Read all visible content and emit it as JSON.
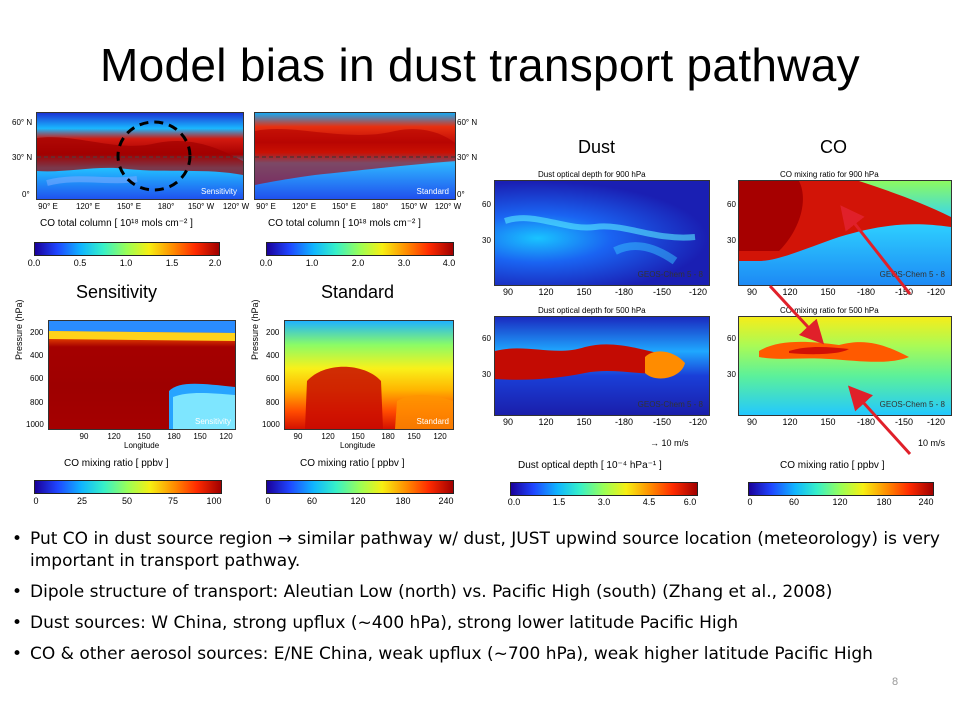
{
  "title": "Model bias in dust transport pathway",
  "labels": {
    "sensitivity": "Sensitivity",
    "standard": "Standard",
    "dust": "Dust",
    "co": "CO"
  },
  "left_maps": {
    "lat_ticks": [
      "60° N",
      "30° N",
      "0°"
    ],
    "lon_ticks": [
      "90° E",
      "120° E",
      "150° E",
      "180°",
      "150° W",
      "120° W"
    ],
    "sens_tag": "Sensitivity",
    "std_tag": "Standard",
    "caption": "CO total column [ 10¹⁸ mols cm⁻² ]",
    "cbar1_ticks": [
      "0.0",
      "0.5",
      "1.0",
      "1.5",
      "2.0"
    ],
    "cbar2_ticks": [
      "0.0",
      "1.0",
      "2.0",
      "3.0",
      "4.0"
    ]
  },
  "cross": {
    "y_label": "Pressure (hPa)",
    "y_ticks": [
      "200",
      "400",
      "600",
      "800",
      "1000"
    ],
    "x_ticks": [
      "90",
      "120",
      "150",
      "180",
      "150",
      "120"
    ],
    "x_label": "Longitude",
    "caption": "CO mixing ratio [ ppbv ]",
    "cbar1_ticks": [
      "0",
      "25",
      "50",
      "75",
      "100"
    ],
    "cbar2_ticks": [
      "0",
      "60",
      "120",
      "180",
      "240"
    ]
  },
  "right_maps": {
    "dust900_title": "Dust optical depth for 900 hPa",
    "dust500_title": "Dust optical depth for 500 hPa",
    "co900_title": "CO mixing ratio for 900 hPa",
    "co500_title": "CO mixing ratio for 500 hPa",
    "lon_ticks": [
      "90",
      "120",
      "150",
      "-180",
      "-150",
      "-120"
    ],
    "lat_ticks": [
      "60",
      "30"
    ],
    "geos": "GEOS-Chem 5 - 8",
    "wind_dust": "→ 10 m/s",
    "wind_co": "10 m/s",
    "dust_caption": "Dust optical depth [ 10⁻⁴ hPa⁻¹ ]",
    "co_caption": "CO mixing ratio [ ppbv ]",
    "dust_cbar_ticks": [
      "0.0",
      "1.5",
      "3.0",
      "4.5",
      "6.0"
    ],
    "co_cbar_ticks": [
      "0",
      "60",
      "120",
      "180",
      "240"
    ]
  },
  "bullets": [
    "Put CO in dust source region  → similar pathway w/ dust, JUST upwind source location (meteorology) is very important in transport pathway.",
    "Dipole structure of transport: Aleutian Low (north) vs. Pacific High (south) (Zhang et al., 2008)",
    "Dust sources: W China, strong upflux (~400 hPa), strong lower latitude Pacific High",
    "CO & other aerosol sources: E/NE China, weak upflux (~700 hPa), weak higher latitude Pacific High"
  ],
  "page_number": "8",
  "colors": {
    "arrow": "#e0202a",
    "circle": "#000000"
  }
}
